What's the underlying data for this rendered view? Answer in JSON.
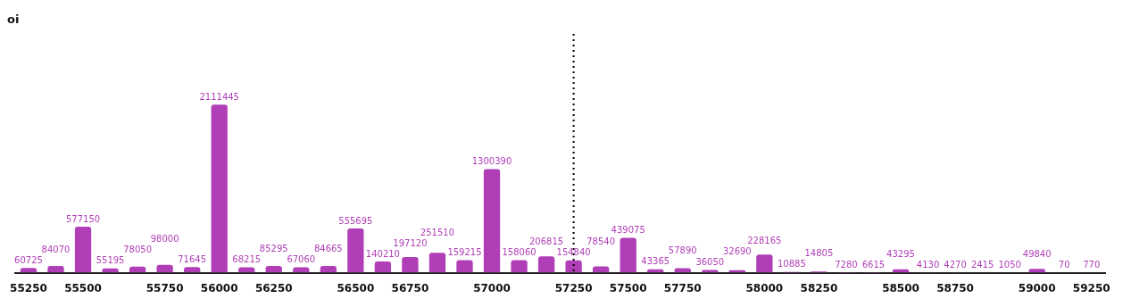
{
  "chart_data": {
    "type": "bar",
    "title": "oi",
    "categories": [
      "55250",
      null,
      "55500",
      null,
      null,
      "55750",
      null,
      "56000",
      null,
      "56250",
      null,
      null,
      "56500",
      null,
      "56750",
      null,
      null,
      "57000",
      null,
      null,
      "57250",
      null,
      "57500",
      null,
      "57750",
      null,
      null,
      "58000",
      null,
      "58250",
      null,
      null,
      "58500",
      null,
      "58750",
      null,
      null,
      "59000",
      null,
      "59250"
    ],
    "series": [
      {
        "color": "#b03fb7",
        "values": [
          60725,
          84070,
          577150,
          55195,
          78050,
          98000,
          71645,
          2111445,
          68215,
          85295,
          67060,
          84665,
          555695,
          140210,
          197120,
          251510,
          159215,
          1300390,
          158060,
          206815,
          154840,
          78540,
          439075,
          43365,
          57890,
          36050,
          32690,
          228165,
          10885,
          14805,
          7280,
          6615,
          43295,
          4130,
          4270,
          2415,
          1050,
          49840,
          70,
          770
        ]
      }
    ],
    "tick_labels": "x",
    "data_labels": true,
    "legend": false,
    "ref_lines": [
      {
        "axis": "x",
        "value": "57250",
        "color": "#000000",
        "line_style": "dotted"
      }
    ]
  }
}
